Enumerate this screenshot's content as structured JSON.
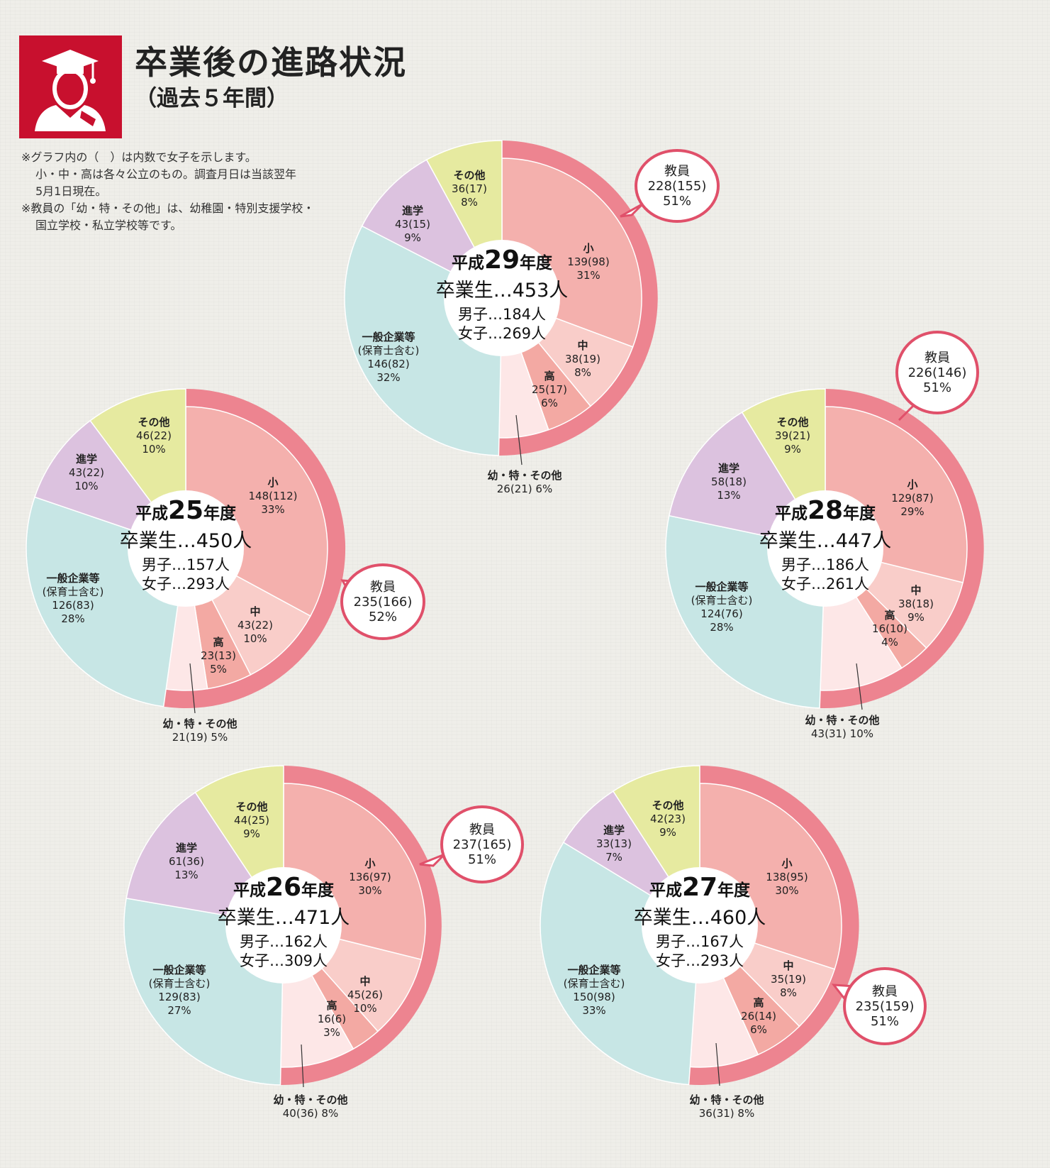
{
  "header": {
    "title": "卒業後の進路状況",
    "subtitle": "（過去５年間）",
    "icon": "graduate-icon"
  },
  "notes": [
    "※グラフ内の（　）は内数で女子を示します。",
    "小・中・高は各々公立のもの。調査月日は当該翌年",
    "5月1日現在。",
    "※教員の「幼・特・その他」は、幼稚園・特別支援学校・",
    "国立学校・私立学校等です。"
  ],
  "colors": {
    "brand": "#c8102e",
    "teacher_outer": "#ed8490",
    "sho": "#f4b0ad",
    "chu": "#f9cdc9",
    "ko": "#f3a9a3",
    "yo": "#fde7e7",
    "ippan": "#c7e6e5",
    "shingaku": "#dcc2df",
    "sonota": "#e6eaa0",
    "callout_border": "#e0506a"
  },
  "chart_data": [
    {
      "type": "pie",
      "variant": "nested-donut",
      "year_prefix": "平成",
      "year_number": "29",
      "year_suffix": "年度",
      "graduates_line": "卒業生…453人",
      "male_line": "男子…184人",
      "female_line": "女子…269人",
      "teacher": {
        "name": "教員",
        "value": 228,
        "female": 155,
        "percent": 51,
        "lines": [
          "教員",
          "228(155)",
          "51%"
        ]
      },
      "segments": [
        {
          "key": "sho",
          "name": "小",
          "value": 139,
          "female": 98,
          "percent": 31,
          "lines": [
            "小",
            "139(98)",
            "31%"
          ]
        },
        {
          "key": "chu",
          "name": "中",
          "value": 38,
          "female": 19,
          "percent": 8,
          "lines": [
            "中",
            "38(19)",
            "8%"
          ]
        },
        {
          "key": "ko",
          "name": "高",
          "value": 25,
          "female": 17,
          "percent": 6,
          "lines": [
            "高",
            "25(17)",
            "6%"
          ]
        },
        {
          "key": "yo",
          "name": "幼・特・その他",
          "value": 26,
          "female": 21,
          "percent": 6,
          "lines": [
            "幼・特・その他",
            "26(21)  6%"
          ]
        },
        {
          "key": "ippan",
          "name": "一般企業等(保育士含む)",
          "value": 146,
          "female": 82,
          "percent": 32,
          "lines": [
            "一般企業等",
            "(保育士含む)",
            "146(82)",
            "32%"
          ]
        },
        {
          "key": "shingaku",
          "name": "進学",
          "value": 43,
          "female": 15,
          "percent": 9,
          "lines": [
            "進学",
            "43(15)",
            "9%"
          ]
        },
        {
          "key": "sonota",
          "name": "その他",
          "value": 36,
          "female": 17,
          "percent": 8,
          "lines": [
            "その他",
            "36(17)",
            "8%"
          ]
        }
      ]
    },
    {
      "type": "pie",
      "variant": "nested-donut",
      "year_prefix": "平成",
      "year_number": "25",
      "year_suffix": "年度",
      "graduates_line": "卒業生…450人",
      "male_line": "男子…157人",
      "female_line": "女子…293人",
      "teacher": {
        "name": "教員",
        "value": 235,
        "female": 166,
        "percent": 52,
        "lines": [
          "教員",
          "235(166)",
          "52%"
        ]
      },
      "segments": [
        {
          "key": "sho",
          "name": "小",
          "value": 148,
          "female": 112,
          "percent": 33,
          "lines": [
            "小",
            "148(112)",
            "33%"
          ]
        },
        {
          "key": "chu",
          "name": "中",
          "value": 43,
          "female": 22,
          "percent": 10,
          "lines": [
            "中",
            "43(22)",
            "10%"
          ]
        },
        {
          "key": "ko",
          "name": "高",
          "value": 23,
          "female": 13,
          "percent": 5,
          "lines": [
            "高",
            "23(13)",
            "5%"
          ]
        },
        {
          "key": "yo",
          "name": "幼・特・その他",
          "value": 21,
          "female": 19,
          "percent": 5,
          "lines": [
            "幼・特・その他",
            "21(19)  5%"
          ]
        },
        {
          "key": "ippan",
          "name": "一般企業等(保育士含む)",
          "value": 126,
          "female": 83,
          "percent": 28,
          "lines": [
            "一般企業等",
            "(保育士含む)",
            "126(83)",
            "28%"
          ]
        },
        {
          "key": "shingaku",
          "name": "進学",
          "value": 43,
          "female": 22,
          "percent": 10,
          "lines": [
            "進学",
            "43(22)",
            "10%"
          ]
        },
        {
          "key": "sonota",
          "name": "その他",
          "value": 46,
          "female": 22,
          "percent": 10,
          "lines": [
            "その他",
            "46(22)",
            "10%"
          ]
        }
      ]
    },
    {
      "type": "pie",
      "variant": "nested-donut",
      "year_prefix": "平成",
      "year_number": "28",
      "year_suffix": "年度",
      "graduates_line": "卒業生…447人",
      "male_line": "男子…186人",
      "female_line": "女子…261人",
      "teacher": {
        "name": "教員",
        "value": 226,
        "female": 146,
        "percent": 51,
        "lines": [
          "教員",
          "226(146)",
          "51%"
        ]
      },
      "segments": [
        {
          "key": "sho",
          "name": "小",
          "value": 129,
          "female": 87,
          "percent": 29,
          "lines": [
            "小",
            "129(87)",
            "29%"
          ]
        },
        {
          "key": "chu",
          "name": "中",
          "value": 38,
          "female": 18,
          "percent": 9,
          "lines": [
            "中",
            "38(18)",
            "9%"
          ]
        },
        {
          "key": "ko",
          "name": "高",
          "value": 16,
          "female": 10,
          "percent": 4,
          "lines": [
            "高",
            "16(10)",
            "4%"
          ]
        },
        {
          "key": "yo",
          "name": "幼・特・その他",
          "value": 43,
          "female": 31,
          "percent": 10,
          "lines": [
            "幼・特・その他",
            "43(31)  10%"
          ]
        },
        {
          "key": "ippan",
          "name": "一般企業等(保育士含む)",
          "value": 124,
          "female": 76,
          "percent": 28,
          "lines": [
            "一般企業等",
            "(保育士含む)",
            "124(76)",
            "28%"
          ]
        },
        {
          "key": "shingaku",
          "name": "進学",
          "value": 58,
          "female": 18,
          "percent": 13,
          "lines": [
            "進学",
            "58(18)",
            "13%"
          ]
        },
        {
          "key": "sonota",
          "name": "その他",
          "value": 39,
          "female": 21,
          "percent": 9,
          "lines": [
            "その他",
            "39(21)",
            "9%"
          ]
        }
      ]
    },
    {
      "type": "pie",
      "variant": "nested-donut",
      "year_prefix": "平成",
      "year_number": "26",
      "year_suffix": "年度",
      "graduates_line": "卒業生…471人",
      "male_line": "男子…162人",
      "female_line": "女子…309人",
      "teacher": {
        "name": "教員",
        "value": 237,
        "female": 165,
        "percent": 51,
        "lines": [
          "教員",
          "237(165)",
          "51%"
        ]
      },
      "segments": [
        {
          "key": "sho",
          "name": "小",
          "value": 136,
          "female": 97,
          "percent": 30,
          "lines": [
            "小",
            "136(97)",
            "30%"
          ]
        },
        {
          "key": "chu",
          "name": "中",
          "value": 45,
          "female": 26,
          "percent": 10,
          "lines": [
            "中",
            "45(26)",
            "10%"
          ]
        },
        {
          "key": "ko",
          "name": "高",
          "value": 16,
          "female": 6,
          "percent": 3,
          "lines": [
            "高",
            "16(6)",
            "3%"
          ]
        },
        {
          "key": "yo",
          "name": "幼・特・その他",
          "value": 40,
          "female": 36,
          "percent": 8,
          "lines": [
            "幼・特・その他",
            "40(36)  8%"
          ]
        },
        {
          "key": "ippan",
          "name": "一般企業等(保育士含む)",
          "value": 129,
          "female": 83,
          "percent": 27,
          "lines": [
            "一般企業等",
            "(保育士含む)",
            "129(83)",
            "27%"
          ]
        },
        {
          "key": "shingaku",
          "name": "進学",
          "value": 61,
          "female": 36,
          "percent": 13,
          "lines": [
            "進学",
            "61(36)",
            "13%"
          ]
        },
        {
          "key": "sonota",
          "name": "その他",
          "value": 44,
          "female": 25,
          "percent": 9,
          "lines": [
            "その他",
            "44(25)",
            "9%"
          ]
        }
      ]
    },
    {
      "type": "pie",
      "variant": "nested-donut",
      "year_prefix": "平成",
      "year_number": "27",
      "year_suffix": "年度",
      "graduates_line": "卒業生…460人",
      "male_line": "男子…167人",
      "female_line": "女子…293人",
      "teacher": {
        "name": "教員",
        "value": 235,
        "female": 159,
        "percent": 51,
        "lines": [
          "教員",
          "235(159)",
          "51%"
        ]
      },
      "segments": [
        {
          "key": "sho",
          "name": "小",
          "value": 138,
          "female": 95,
          "percent": 30,
          "lines": [
            "小",
            "138(95)",
            "30%"
          ]
        },
        {
          "key": "chu",
          "name": "中",
          "value": 35,
          "female": 19,
          "percent": 8,
          "lines": [
            "中",
            "35(19)",
            "8%"
          ]
        },
        {
          "key": "ko",
          "name": "高",
          "value": 26,
          "female": 14,
          "percent": 6,
          "lines": [
            "高",
            "26(14)",
            "6%"
          ]
        },
        {
          "key": "yo",
          "name": "幼・特・その他",
          "value": 36,
          "female": 31,
          "percent": 8,
          "lines": [
            "幼・特・その他",
            "36(31)  8%"
          ]
        },
        {
          "key": "ippan",
          "name": "一般企業等(保育士含む)",
          "value": 150,
          "female": 98,
          "percent": 33,
          "lines": [
            "一般企業等",
            "(保育士含む)",
            "150(98)",
            "33%"
          ]
        },
        {
          "key": "shingaku",
          "name": "進学",
          "value": 33,
          "female": 13,
          "percent": 7,
          "lines": [
            "進学",
            "33(13)",
            "7%"
          ]
        },
        {
          "key": "sonota",
          "name": "その他",
          "value": 42,
          "female": 23,
          "percent": 9,
          "lines": [
            "その他",
            "42(23)",
            "9%"
          ]
        }
      ]
    }
  ]
}
